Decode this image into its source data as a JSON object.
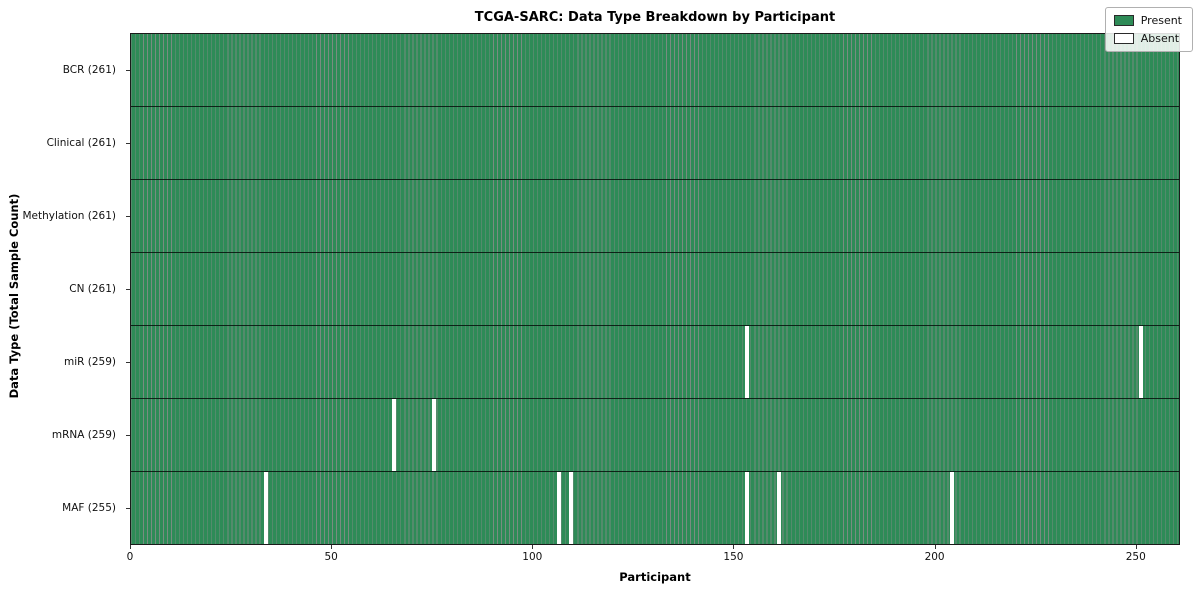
{
  "chart_data": {
    "type": "heatmap",
    "title": "TCGA-SARC: Data Type Breakdown by Participant",
    "xlabel": "Participant",
    "ylabel": "Data Type (Total Sample Count)",
    "n_participants": 261,
    "x_ticks": [
      0,
      50,
      100,
      150,
      200,
      250
    ],
    "rows": [
      {
        "label": "BCR (261)",
        "data_type": "BCR",
        "count": 261,
        "absent_participants": []
      },
      {
        "label": "Clinical (261)",
        "data_type": "Clinical",
        "count": 261,
        "absent_participants": []
      },
      {
        "label": "Methylation (261)",
        "data_type": "Methylation",
        "count": 261,
        "absent_participants": []
      },
      {
        "label": "CN (261)",
        "data_type": "CN",
        "count": 261,
        "absent_participants": []
      },
      {
        "label": "miR (259)",
        "data_type": "miR",
        "count": 259,
        "absent_participants": [
          153,
          251
        ]
      },
      {
        "label": "mRNA (259)",
        "data_type": "mRNA",
        "count": 259,
        "absent_participants": [
          65,
          75
        ]
      },
      {
        "label": "MAF (255)",
        "data_type": "MAF",
        "count": 255,
        "absent_participants": [
          33,
          106,
          109,
          153,
          161,
          204
        ]
      }
    ],
    "legend": [
      {
        "label": "Present",
        "color": "#2e8b57"
      },
      {
        "label": "Absent",
        "color": "#ffffff"
      }
    ],
    "colors": {
      "present": "#2e8b57",
      "bar_edge": "#0a2d19",
      "absent": "#ffffff"
    },
    "layout": {
      "legend_position": "upper right",
      "grid": false
    }
  }
}
